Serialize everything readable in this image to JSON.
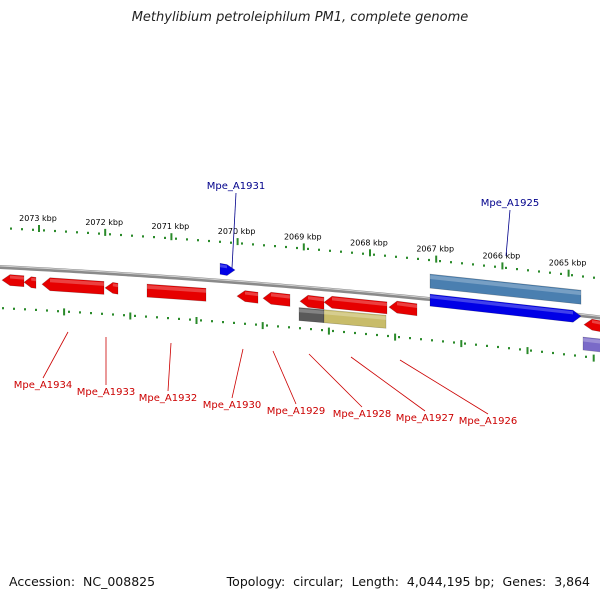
{
  "title": "Methylibium petroleiphilum PM1, complete genome",
  "footer": {
    "accession_label": "Accession:",
    "accession": "NC_008825",
    "topology_label": "Topology:",
    "topology": "circular",
    "length_label": "Length:",
    "length": "4,044,195 bp",
    "genes_label": "Genes:",
    "genes": "3,864"
  },
  "colors": {
    "backbone": "#8a8a8a",
    "tick": "#2a8a2a",
    "forward_gene": "#0000e6",
    "reverse_gene": "#e60000",
    "forward_label": "#00008b",
    "reverse_label": "#cc0000",
    "forward_feature": "#4a7fb0",
    "reverse_feature_gray": "#5a5a5a",
    "reverse_feature_khaki": "#c8bc6a",
    "purple_feature": "#7a6ac8"
  },
  "ruler": {
    "unit": "kbp",
    "ticks": [
      2073,
      2072,
      2071,
      2070,
      2069,
      2068,
      2067,
      2066,
      2065
    ]
  },
  "genes": {
    "forward": [
      "Mpe_A1931",
      "Mpe_A1925"
    ],
    "reverse": [
      "Mpe_A1934",
      "Mpe_A1933",
      "Mpe_A1932",
      "Mpe_A1930",
      "Mpe_A1929",
      "Mpe_A1928",
      "Mpe_A1927",
      "Mpe_A1926"
    ]
  }
}
